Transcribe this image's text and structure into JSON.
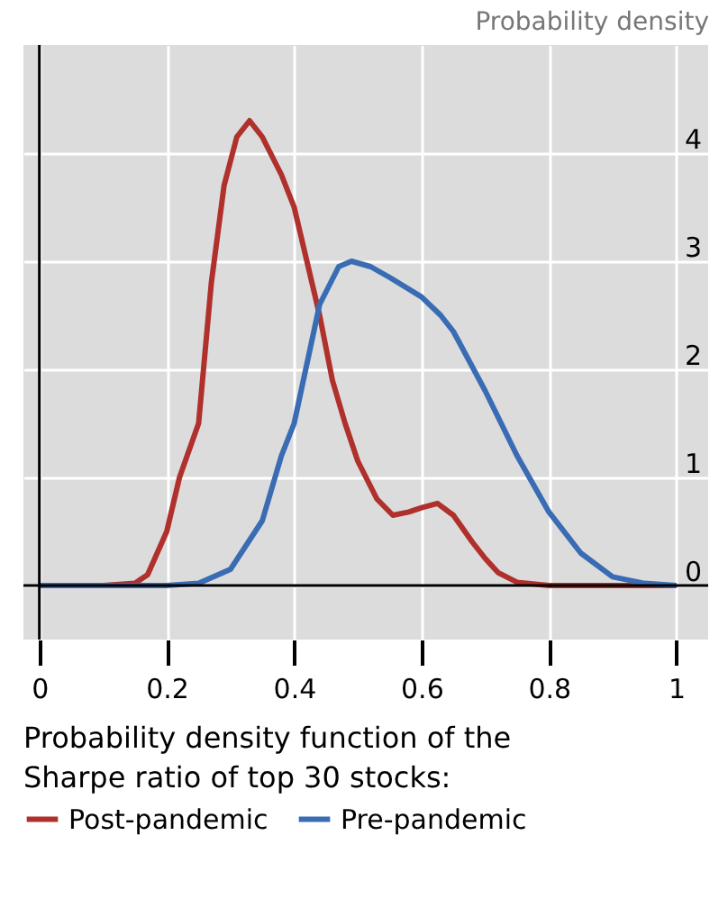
{
  "chart_data": {
    "type": "line",
    "title": "Probability density function of the\nSharpe ratio of top 30 stocks:",
    "ylabel": "Probability density",
    "xlim": [
      -0.025,
      1.05
    ],
    "ylim": [
      -0.5,
      5
    ],
    "xticks": [
      0,
      0.2,
      0.4,
      0.6,
      0.8,
      1
    ],
    "yticks": [
      0,
      1,
      2,
      3,
      4
    ],
    "grid": true,
    "legend": "bottom",
    "line_style": "solid",
    "marker": "none",
    "series": [
      {
        "name": "Post-pandemic",
        "color": "#b0302c",
        "x": [
          0,
          0.1,
          0.15,
          0.17,
          0.2,
          0.22,
          0.25,
          0.27,
          0.29,
          0.31,
          0.33,
          0.35,
          0.38,
          0.4,
          0.42,
          0.44,
          0.46,
          0.48,
          0.5,
          0.53,
          0.555,
          0.58,
          0.6,
          0.625,
          0.65,
          0.68,
          0.7,
          0.72,
          0.75,
          0.8,
          0.9,
          1
        ],
        "values": [
          0,
          0,
          0.02,
          0.1,
          0.5,
          1.0,
          1.5,
          2.8,
          3.7,
          4.15,
          4.3,
          4.15,
          3.8,
          3.5,
          3.0,
          2.5,
          1.9,
          1.5,
          1.15,
          0.8,
          0.65,
          0.68,
          0.72,
          0.76,
          0.65,
          0.4,
          0.25,
          0.12,
          0.03,
          0,
          0,
          0
        ]
      },
      {
        "name": "Pre-pandemic",
        "color": "#3a6cb4",
        "x": [
          0,
          0.2,
          0.25,
          0.3,
          0.35,
          0.38,
          0.4,
          0.44,
          0.47,
          0.49,
          0.52,
          0.55,
          0.6,
          0.63,
          0.65,
          0.7,
          0.75,
          0.8,
          0.85,
          0.9,
          0.95,
          1
        ],
        "values": [
          0,
          0,
          0.02,
          0.15,
          0.6,
          1.2,
          1.5,
          2.6,
          2.95,
          3.0,
          2.95,
          2.85,
          2.67,
          2.5,
          2.35,
          1.8,
          1.2,
          0.68,
          0.3,
          0.08,
          0.02,
          0
        ]
      }
    ]
  }
}
